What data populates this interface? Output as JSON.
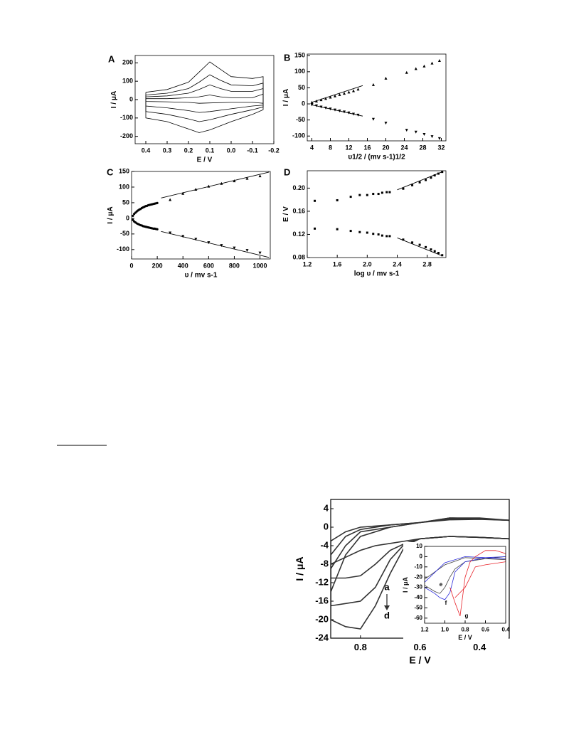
{
  "chart_data": [
    {
      "type": "line",
      "panel_label": "A",
      "xlabel": "E / V",
      "ylabel": "I / μA",
      "xlim": [
        0.45,
        -0.2
      ],
      "ylim": [
        -240,
        240
      ],
      "xticks": [
        0.4,
        0.3,
        0.2,
        0.1,
        {
          "value": 0,
          "label": "0.0"
        },
        -0.1,
        -0.2
      ],
      "yticks": [
        -200,
        -100,
        0,
        100,
        200
      ],
      "series": [
        {
          "color": "#000000",
          "x": [
            0.4,
            0.3,
            0.2,
            0.15,
            0.1,
            0.05,
            0,
            -0.1,
            -0.15,
            -0.15,
            -0.1,
            0,
            0.1,
            0.15,
            0.2,
            0.3,
            0.4,
            0.4
          ],
          "values": [
            40,
            55,
            95,
            150,
            205,
            165,
            125,
            115,
            125,
            -55,
            -80,
            -120,
            -165,
            -180,
            -160,
            -120,
            -100,
            40
          ]
        },
        {
          "color": "#000000",
          "x": [
            0.4,
            0.3,
            0.2,
            0.15,
            0.1,
            0.05,
            0,
            -0.1,
            -0.15,
            -0.15,
            -0.1,
            0,
            0.1,
            0.15,
            0.2,
            0.3,
            0.4,
            0.4
          ],
          "values": [
            25,
            35,
            60,
            95,
            135,
            105,
            80,
            75,
            90,
            -40,
            -55,
            -80,
            -110,
            -120,
            -105,
            -80,
            -65,
            25
          ]
        },
        {
          "color": "#000000",
          "x": [
            0.4,
            0.3,
            0.2,
            0.15,
            0.1,
            0.05,
            0,
            -0.1,
            -0.15,
            -0.15,
            -0.1,
            0,
            0.1,
            0.15,
            0.2,
            0.3,
            0.4,
            0.4
          ],
          "values": [
            15,
            20,
            35,
            55,
            80,
            60,
            45,
            45,
            60,
            -30,
            -35,
            -50,
            -65,
            -70,
            -60,
            -45,
            -35,
            15
          ]
        },
        {
          "color": "#000000",
          "x": [
            0.4,
            0.3,
            0.2,
            0.15,
            0.1,
            0.05,
            0,
            -0.1,
            -0.15,
            -0.15,
            -0.1,
            0,
            0.1,
            0.15,
            0.2,
            0.3,
            0.4,
            0.4
          ],
          "values": [
            5,
            5,
            10,
            15,
            25,
            15,
            10,
            10,
            30,
            -20,
            -15,
            -15,
            -18,
            -20,
            -15,
            -12,
            -10,
            5
          ]
        }
      ]
    },
    {
      "type": "scatter",
      "panel_label": "B",
      "xlabel": "υ1/2 / (mv s-1)1/2",
      "ylabel": "I / μA",
      "xlim": [
        3,
        33
      ],
      "ylim": [
        -115,
        155
      ],
      "xticks": [
        4,
        8,
        12,
        16,
        20,
        24,
        28,
        32
      ],
      "yticks": [
        -100,
        -50,
        0,
        50,
        100,
        150
      ],
      "series": [
        {
          "marker": "triangle-up",
          "color": "#000000",
          "x": [
            4,
            5,
            6,
            7,
            8,
            9,
            10,
            11,
            12,
            13,
            14,
            17.3,
            20,
            24.5,
            26.5,
            28.3,
            30,
            31.6
          ],
          "values": [
            5,
            9,
            13,
            17,
            21,
            25,
            29,
            33,
            37,
            41,
            46,
            60,
            80,
            98,
            110,
            118,
            127,
            135
          ]
        },
        {
          "marker": "triangle-down",
          "color": "#000000",
          "x": [
            4,
            5,
            6,
            7,
            8,
            9,
            10,
            11,
            12,
            13,
            14,
            17.3,
            20,
            24.5,
            26.5,
            28.3,
            30,
            31.6
          ],
          "values": [
            -3,
            -6,
            -10,
            -13,
            -16,
            -19,
            -22,
            -25,
            -28,
            -32,
            -35,
            -48,
            -60,
            -82,
            -88,
            -95,
            -102,
            -108
          ]
        },
        {
          "marker": "line",
          "color": "#000000",
          "x": [
            4,
            15
          ],
          "values": [
            5,
            57
          ]
        },
        {
          "marker": "line",
          "color": "#000000",
          "x": [
            4,
            15
          ],
          "values": [
            -3,
            -38
          ]
        }
      ]
    },
    {
      "type": "scatter",
      "panel_label": "C",
      "xlabel": "υ / mv s-1",
      "ylabel": "I / μA",
      "xlim": [
        0,
        1080
      ],
      "ylim": [
        -130,
        150
      ],
      "xticks": [
        0,
        200,
        400,
        600,
        800,
        1000
      ],
      "yticks": [
        -100,
        -50,
        0,
        50,
        100,
        150
      ],
      "series": [
        {
          "marker": "circle",
          "color": "#000000",
          "x": [
            10,
            20,
            30,
            40,
            50,
            60,
            70,
            80,
            90,
            100,
            110,
            120,
            130,
            140,
            150,
            160,
            170,
            180,
            190,
            200
          ],
          "values": [
            8,
            14,
            18,
            22,
            25,
            28,
            30,
            33,
            35,
            37,
            39,
            40,
            42,
            43,
            44,
            45,
            46,
            47,
            48,
            49
          ]
        },
        {
          "marker": "circle",
          "color": "#000000",
          "x": [
            10,
            20,
            30,
            40,
            50,
            60,
            70,
            80,
            90,
            100,
            110,
            120,
            130,
            140,
            150,
            160,
            170,
            180,
            190,
            200
          ],
          "values": [
            -5,
            -10,
            -13,
            -16,
            -18,
            -20,
            -22,
            -23,
            -25,
            -26,
            -27,
            -28,
            -29,
            -30,
            -31,
            -32,
            -33,
            -33,
            -34,
            -35
          ]
        },
        {
          "marker": "triangle-up",
          "color": "#000000",
          "x": [
            300,
            400,
            500,
            600,
            700,
            800,
            900,
            1000
          ],
          "values": [
            60,
            80,
            93,
            103,
            112,
            120,
            128,
            136
          ]
        },
        {
          "marker": "triangle-down",
          "color": "#000000",
          "x": [
            300,
            400,
            500,
            600,
            700,
            800,
            900,
            1000
          ],
          "values": [
            -47,
            -58,
            -67,
            -78,
            -87,
            -95,
            -103,
            -111
          ]
        },
        {
          "marker": "line",
          "color": "#000000",
          "x": [
            230,
            1070
          ],
          "values": [
            65,
            148
          ]
        },
        {
          "marker": "line",
          "color": "#000000",
          "x": [
            230,
            1070
          ],
          "values": [
            -42,
            -125
          ]
        }
      ]
    },
    {
      "type": "scatter",
      "panel_label": "D",
      "xlabel": "log υ / mv s-1",
      "ylabel": "E / V",
      "xlim": [
        1.2,
        3.05
      ],
      "ylim": [
        0.08,
        0.23
      ],
      "xticks": [
        1.2,
        1.6,
        {
          "value": 2,
          "label": "2.0"
        },
        2.4,
        2.8
      ],
      "yticks": [
        0.08,
        0.12,
        0.16,
        {
          "value": 0.2,
          "label": "0.20"
        }
      ],
      "series": [
        {
          "marker": "square",
          "color": "#000000",
          "x": [
            1.3,
            1.6,
            1.78,
            1.9,
            2.0,
            2.08,
            2.15,
            2.2,
            2.26,
            2.3,
            2.48,
            2.6,
            2.7,
            2.78,
            2.85,
            2.9,
            2.95,
            3.0
          ],
          "values": [
            0.178,
            0.179,
            0.185,
            0.188,
            0.188,
            0.19,
            0.19,
            0.192,
            0.193,
            0.193,
            0.199,
            0.205,
            0.21,
            0.214,
            0.218,
            0.222,
            0.225,
            0.228
          ]
        },
        {
          "marker": "square",
          "color": "#000000",
          "x": [
            1.3,
            1.6,
            1.78,
            1.9,
            2.0,
            2.08,
            2.15,
            2.2,
            2.26,
            2.3,
            2.48,
            2.6,
            2.7,
            2.78,
            2.85,
            2.9,
            2.95,
            3.0
          ],
          "values": [
            0.13,
            0.129,
            0.126,
            0.124,
            0.123,
            0.121,
            0.12,
            0.118,
            0.117,
            0.117,
            0.111,
            0.106,
            0.102,
            0.098,
            0.094,
            0.091,
            0.088,
            0.084
          ]
        },
        {
          "marker": "line",
          "color": "#000000",
          "x": [
            2.4,
            3.0
          ],
          "values": [
            0.197,
            0.228
          ]
        },
        {
          "marker": "line",
          "color": "#000000",
          "x": [
            2.4,
            3.0
          ],
          "values": [
            0.114,
            0.083
          ]
        }
      ]
    },
    {
      "type": "line",
      "xlabel": "E / V",
      "ylabel": "I / μA",
      "xlim": [
        0.9,
        0.3
      ],
      "ylim": [
        -24,
        6
      ],
      "xticks": [
        0.8,
        0.6,
        0.4
      ],
      "yticks": [
        -24,
        -20,
        -16,
        -12,
        -8,
        -4,
        0,
        4
      ],
      "annotations": [
        "a",
        "d"
      ],
      "series": [
        {
          "color": "#333333",
          "x": [
            0.3,
            0.4,
            0.5,
            0.6,
            0.65,
            0.7,
            0.75,
            0.8,
            0.85,
            0.9,
            0.9,
            0.85,
            0.8,
            0.7,
            0.6,
            0.5,
            0.4,
            0.3
          ],
          "values": [
            -2.5,
            -2.2,
            -2,
            -2.5,
            -3,
            -3.5,
            -4,
            -5,
            -6.5,
            -8,
            -3,
            -1,
            0,
            0.5,
            1,
            1.6,
            1.7,
            1.5
          ]
        },
        {
          "color": "#333333",
          "x": [
            0.3,
            0.4,
            0.5,
            0.6,
            0.65,
            0.7,
            0.75,
            0.8,
            0.85,
            0.9,
            0.9,
            0.85,
            0.8,
            0.7,
            0.6,
            0.5,
            0.4,
            0.3
          ],
          "values": [
            -2.5,
            -2.2,
            -2,
            -2.5,
            -3.5,
            -5,
            -8,
            -10.5,
            -11,
            -11,
            -6,
            -2,
            -0.5,
            0.5,
            1,
            1.8,
            1.8,
            1.5
          ]
        },
        {
          "color": "#333333",
          "x": [
            0.3,
            0.4,
            0.5,
            0.6,
            0.65,
            0.7,
            0.75,
            0.8,
            0.85,
            0.9,
            0.9,
            0.85,
            0.8,
            0.7,
            0.6,
            0.5,
            0.4,
            0.3
          ],
          "values": [
            -2.5,
            -2.2,
            -2,
            -2.5,
            -3.5,
            -7,
            -13,
            -16,
            -16.5,
            -17,
            -9,
            -4,
            -1,
            0,
            1,
            2,
            1.8,
            1.5
          ]
        },
        {
          "color": "#333333",
          "x": [
            0.3,
            0.4,
            0.5,
            0.6,
            0.65,
            0.7,
            0.75,
            0.8,
            0.85,
            0.9,
            0.9,
            0.85,
            0.8,
            0.7,
            0.6,
            0.5,
            0.4,
            0.3
          ],
          "values": [
            -2.5,
            -2.2,
            -2,
            -2.5,
            -4,
            -10,
            -17,
            -22,
            -21.5,
            -20,
            -14,
            -6,
            -2,
            0,
            1,
            2,
            2,
            1.5
          ]
        }
      ]
    },
    {
      "type": "line",
      "xlabel": "E / V",
      "ylabel": "I / μA",
      "xlim": [
        1.2,
        0.4
      ],
      "ylim": [
        -65,
        10
      ],
      "xticks": [
        1.2,
        {
          "value": 1,
          "label": "1.0"
        },
        0.8,
        0.6,
        0.4
      ],
      "yticks": [
        -60,
        -50,
        -40,
        -30,
        -20,
        -10,
        0,
        10
      ],
      "annotations": [
        "e",
        "f",
        "g"
      ],
      "series": [
        {
          "color": "#444444",
          "x": [
            1.2,
            1.1,
            1.05,
            1.0,
            0.95,
            0.9,
            0.8,
            0.6,
            0.4,
            0.4,
            0.6,
            0.8,
            1.0,
            1.2
          ],
          "values": [
            -28,
            -34,
            -36,
            -30,
            -20,
            -12,
            -5,
            -2,
            0,
            -3,
            -2,
            -1,
            -8,
            -22
          ]
        },
        {
          "color": "#2b2bdc",
          "x": [
            1.2,
            1.1,
            1.05,
            1.0,
            0.95,
            0.9,
            0.8,
            0.6,
            0.4,
            0.4,
            0.6,
            0.8,
            1.0,
            1.2
          ],
          "values": [
            -30,
            -36,
            -40,
            -42,
            -35,
            -15,
            -5,
            -1,
            0,
            -2,
            -1,
            0,
            -6,
            -25
          ]
        },
        {
          "color": "#e8242b",
          "x": [
            0.95,
            0.9,
            0.85,
            0.8,
            0.75,
            0.7,
            0.6,
            0.5,
            0.4,
            0.4,
            0.6,
            0.7,
            0.8,
            0.9
          ],
          "values": [
            -30,
            -45,
            -58,
            -20,
            -5,
            0,
            6,
            6,
            3,
            -5,
            -8,
            -10,
            -30,
            -40
          ]
        }
      ]
    }
  ]
}
